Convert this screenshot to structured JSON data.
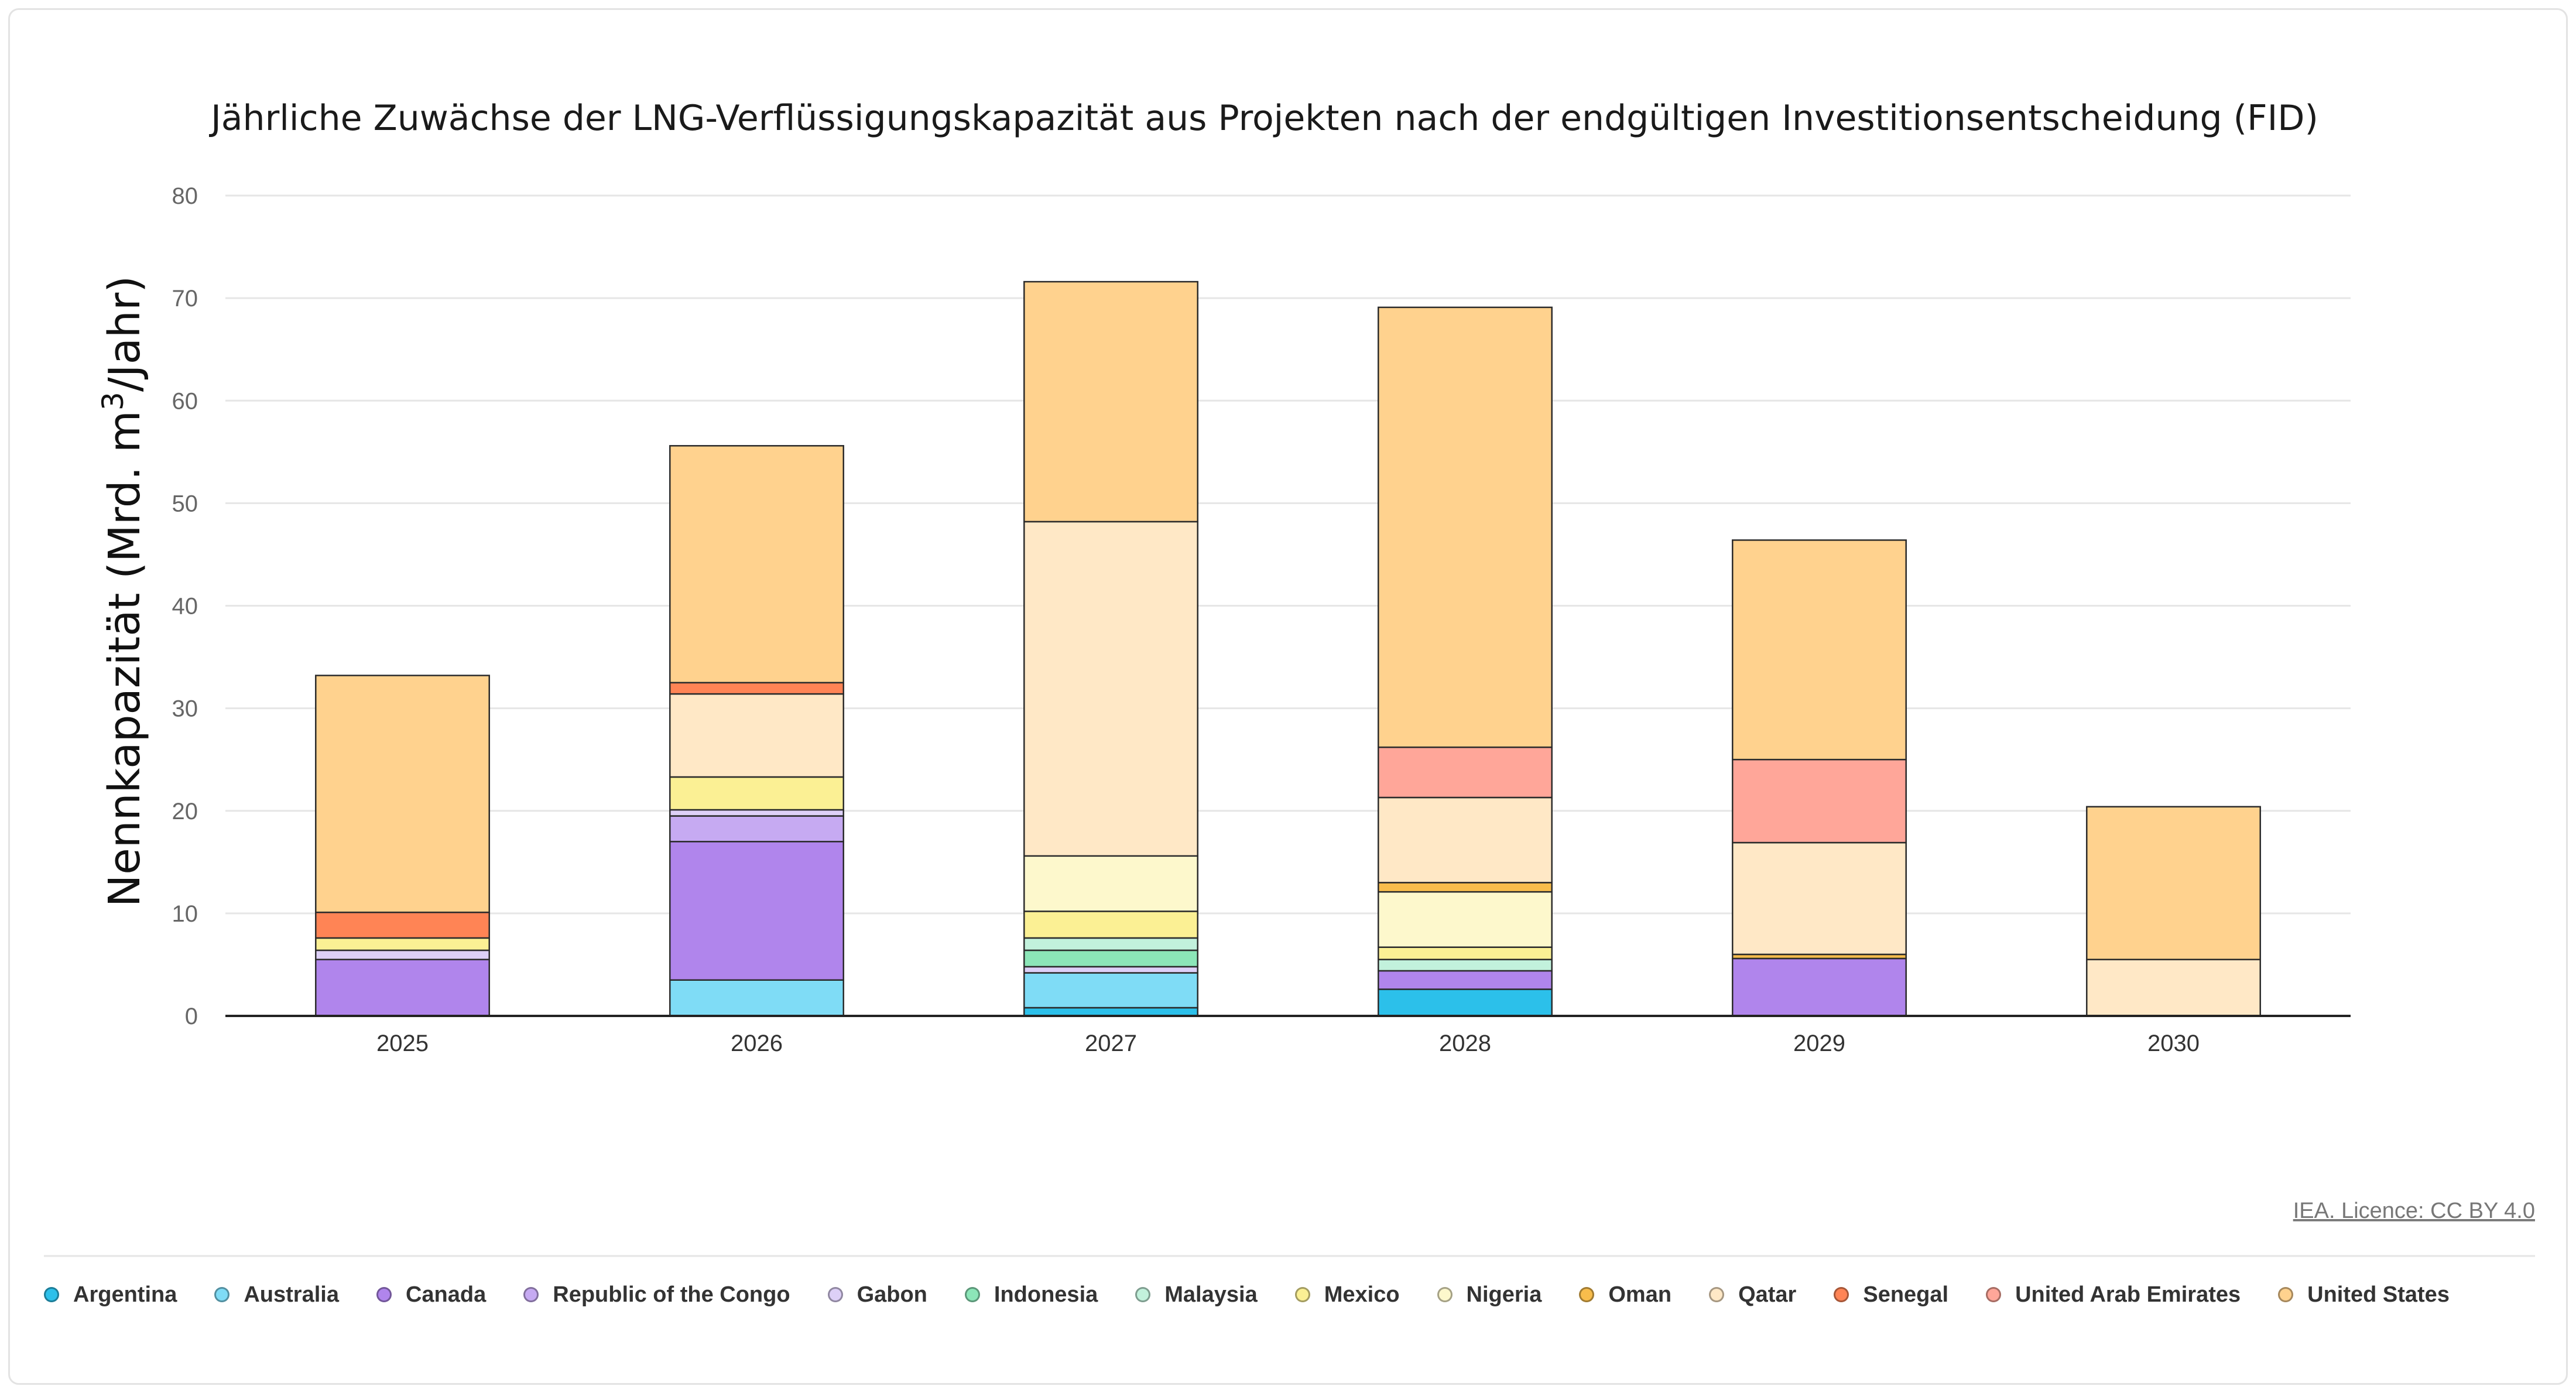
{
  "chart_data": {
    "type": "bar",
    "stacked": true,
    "title": "Jährliche Zuwächse der LNG-Verflüssigungskapazität aus Projekten nach der endgültigen Investitionsentscheidung (FID)",
    "ylabel_main": "Nennkapazität (Mrd. m",
    "ylabel_sup": "3",
    "ylabel_end": "/Jahr)",
    "xlabel": "",
    "ylim": [
      0,
      80
    ],
    "yticks": [
      "0",
      "10",
      "20",
      "30",
      "40",
      "50",
      "60",
      "70",
      "80"
    ],
    "grid": true,
    "legend_position": "bottom",
    "categories": [
      "2025",
      "2026",
      "2027",
      "2028",
      "2029",
      "2030"
    ],
    "series": [
      {
        "name": "Argentina",
        "color": "#2cc0ea",
        "values": [
          0,
          0,
          0.8,
          2.6,
          0,
          0
        ]
      },
      {
        "name": "Australia",
        "color": "#7fdcf6",
        "values": [
          0,
          3.5,
          3.4,
          0,
          0,
          0
        ]
      },
      {
        "name": "Canada",
        "color": "#b085ec",
        "values": [
          5.5,
          13.5,
          0,
          1.8,
          5.6,
          0
        ]
      },
      {
        "name": "Republic of the Congo",
        "color": "#c6aaf2",
        "values": [
          0,
          2.5,
          0,
          0,
          0,
          0
        ]
      },
      {
        "name": "Gabon",
        "color": "#ddd0f7",
        "values": [
          0.9,
          0.6,
          0.6,
          0,
          0,
          0
        ]
      },
      {
        "name": "Indonesia",
        "color": "#8ce6b8",
        "values": [
          0,
          0,
          1.6,
          0,
          0,
          0
        ]
      },
      {
        "name": "Malaysia",
        "color": "#c2f1dc",
        "values": [
          0,
          0,
          1.2,
          1.1,
          0,
          0
        ]
      },
      {
        "name": "Mexico",
        "color": "#fbf094",
        "values": [
          1.2,
          3.2,
          2.6,
          1.2,
          0,
          0
        ]
      },
      {
        "name": "Nigeria",
        "color": "#fdf8cc",
        "values": [
          0,
          0,
          5.4,
          5.4,
          0,
          0
        ]
      },
      {
        "name": "Oman",
        "color": "#f8bd4c",
        "values": [
          0,
          0,
          0,
          0.9,
          0.4,
          0
        ]
      },
      {
        "name": "Qatar",
        "color": "#ffe8c6",
        "values": [
          0,
          8.1,
          32.6,
          8.3,
          10.9,
          5.5
        ]
      },
      {
        "name": "Senegal",
        "color": "#ff8455",
        "values": [
          2.5,
          1.1,
          0,
          0,
          0,
          0
        ]
      },
      {
        "name": "United Arab Emirates",
        "color": "#ffa699",
        "values": [
          0,
          0,
          0,
          4.9,
          8.1,
          0
        ]
      },
      {
        "name": "United States",
        "color": "#ffd28e",
        "values": [
          23.1,
          23.1,
          23.4,
          42.9,
          21.4,
          14.9
        ]
      }
    ]
  },
  "credit": "IEA. Licence: CC BY 4.0"
}
